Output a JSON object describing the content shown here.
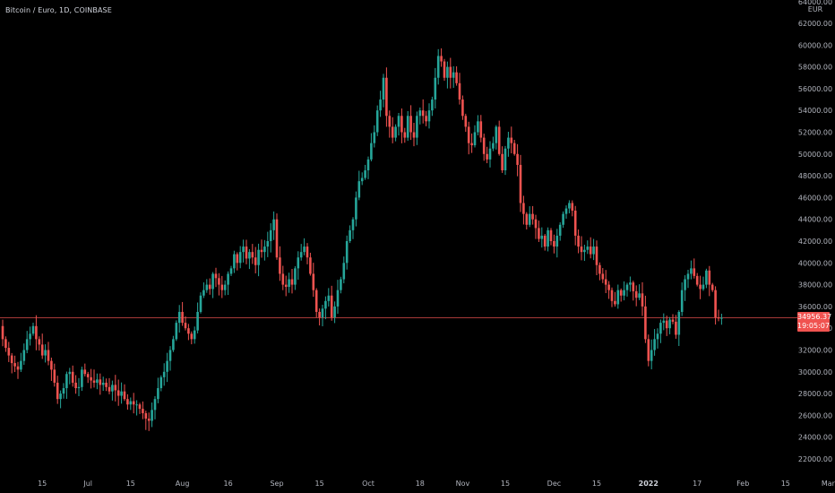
{
  "symbol_title": "Bitcoin / Euro, 1D, COINBASE",
  "currency": "EUR",
  "last_price": "34956.37",
  "countdown": "19:05:07",
  "colors": {
    "up": "#26a69a",
    "down": "#ef5350",
    "background": "#000000",
    "price_line": "#ef5350",
    "text": "#b2b5be"
  },
  "chart_data": {
    "type": "candlestick",
    "title": "Bitcoin / Euro, 1D, COINBASE",
    "ylabel": "EUR",
    "ylim": [
      21000,
      64500
    ],
    "y_ticks": [
      22000,
      24000,
      26000,
      28000,
      30000,
      32000,
      34000,
      36000,
      38000,
      40000,
      42000,
      44000,
      46000,
      48000,
      50000,
      52000,
      54000,
      56000,
      58000,
      60000,
      62000
    ],
    "y_top_label": "64000.00",
    "x_ticks": [
      {
        "label": "15",
        "day": 13,
        "bold": false
      },
      {
        "label": "Jul",
        "day": 28,
        "bold": false
      },
      {
        "label": "15",
        "day": 42,
        "bold": false
      },
      {
        "label": "Aug",
        "day": 59,
        "bold": false
      },
      {
        "label": "16",
        "day": 74,
        "bold": false
      },
      {
        "label": "Sep",
        "day": 90,
        "bold": false
      },
      {
        "label": "15",
        "day": 104,
        "bold": false
      },
      {
        "label": "Oct",
        "day": 120,
        "bold": false
      },
      {
        "label": "18",
        "day": 137,
        "bold": false
      },
      {
        "label": "Nov",
        "day": 151,
        "bold": false
      },
      {
        "label": "15",
        "day": 165,
        "bold": false
      },
      {
        "label": "Dec",
        "day": 181,
        "bold": false
      },
      {
        "label": "15",
        "day": 195,
        "bold": false
      },
      {
        "label": "2022",
        "day": 212,
        "bold": true
      },
      {
        "label": "17",
        "day": 228,
        "bold": false
      },
      {
        "label": "Feb",
        "day": 243,
        "bold": false
      },
      {
        "label": "15",
        "day": 257,
        "bold": false
      },
      {
        "label": "Mar",
        "day": 271,
        "bold": false
      }
    ],
    "close": [
      33000,
      32200,
      31500,
      30800,
      30500,
      30200,
      31000,
      32000,
      33000,
      33500,
      34200,
      33000,
      32500,
      31500,
      32000,
      31000,
      30200,
      29000,
      27500,
      28000,
      28500,
      29800,
      30000,
      29000,
      28500,
      28600,
      30200,
      29800,
      29500,
      29200,
      29000,
      29300,
      28800,
      29000,
      28600,
      28200,
      28800,
      28300,
      27800,
      28200,
      27500,
      27000,
      27300,
      27000,
      27000,
      26600,
      26200,
      25700,
      25500,
      26500,
      27500,
      28500,
      29500,
      30000,
      31000,
      32000,
      33000,
      34500,
      35500,
      34500,
      34000,
      33500,
      33000,
      33800,
      35500,
      37000,
      37500,
      38000,
      37600,
      39000,
      38600,
      38000,
      37500,
      38000,
      39000,
      39500,
      40800,
      40000,
      41000,
      41500,
      40400,
      41000,
      40500,
      39800,
      41200,
      41000,
      41500,
      42000,
      43000,
      44000,
      40500,
      39000,
      38000,
      37800,
      38500,
      38000,
      39500,
      40500,
      41000,
      41500,
      40500,
      39000,
      37500,
      35500,
      35000,
      35800,
      36500,
      37000,
      35000,
      36000,
      37500,
      38500,
      40000,
      42000,
      43000,
      44000,
      46000,
      47500,
      47800,
      48500,
      49500,
      51000,
      52000,
      54000,
      55000,
      57000,
      53500,
      52500,
      51500,
      52500,
      53500,
      52000,
      51500,
      53500,
      52000,
      51500,
      53500,
      54000,
      53500,
      53000,
      54000,
      55000,
      57000,
      59000,
      58500,
      57000,
      58000,
      57000,
      57500,
      56500,
      55000,
      53500,
      52500,
      51000,
      50800,
      52000,
      53000,
      51500,
      50000,
      49500,
      50500,
      51000,
      52500,
      50000,
      48500,
      50500,
      51500,
      51000,
      50000,
      49000,
      45500,
      44500,
      43500,
      44500,
      44000,
      43200,
      42200,
      42500,
      41500,
      43000,
      42000,
      41500,
      42500,
      43500,
      44500,
      45000,
      45500,
      44800,
      42500,
      41500,
      41000,
      41200,
      41500,
      40800,
      41500,
      39800,
      39000,
      38500,
      38000,
      37500,
      36500,
      36200,
      37500,
      37000,
      37500,
      38000,
      38200,
      37400,
      36800,
      37200,
      36000,
      33000,
      31000,
      32000,
      33000,
      33500,
      34500,
      34700,
      34000,
      34800,
      34600,
      33400,
      35500,
      37500,
      38500,
      39000,
      39500,
      38800,
      38000,
      37600,
      38000,
      39300,
      38000,
      37500,
      35000,
      34900,
      34956
    ],
    "start_open": 34200,
    "last_index": 251
  }
}
